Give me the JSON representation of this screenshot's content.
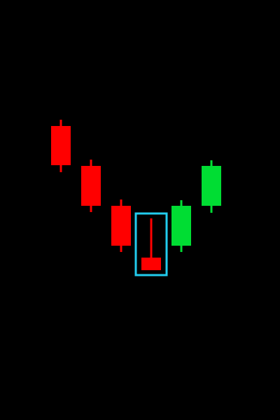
{
  "chart_data": {
    "type": "candlestick",
    "title": "",
    "xlabel": "",
    "ylabel": "",
    "x": [
      1,
      2,
      3,
      4,
      5,
      6
    ],
    "ylim": [
      0,
      600
    ],
    "grid": false,
    "legend": "none",
    "colors": {
      "background": "#000000",
      "bearish": "#ff0000",
      "bullish": "#00dd33",
      "highlight": "#22ccee"
    },
    "series": [
      {
        "candles": [
          {
            "x": 1,
            "open": 420,
            "close": 364,
            "high": 429,
            "low": 354,
            "direction": "bearish"
          },
          {
            "x": 2,
            "open": 363,
            "close": 306,
            "high": 372,
            "low": 297,
            "direction": "bearish"
          },
          {
            "x": 3,
            "open": 306,
            "close": 249,
            "high": 315,
            "low": 240,
            "direction": "bearish"
          },
          {
            "x": 4,
            "open": 232,
            "close": 214,
            "high": 288,
            "low": 214,
            "direction": "bearish",
            "highlighted": true
          },
          {
            "x": 5,
            "open": 249,
            "close": 306,
            "high": 314,
            "low": 240,
            "direction": "bullish"
          },
          {
            "x": 6,
            "open": 306,
            "close": 363,
            "high": 371,
            "low": 296,
            "direction": "bullish"
          }
        ]
      }
    ]
  }
}
